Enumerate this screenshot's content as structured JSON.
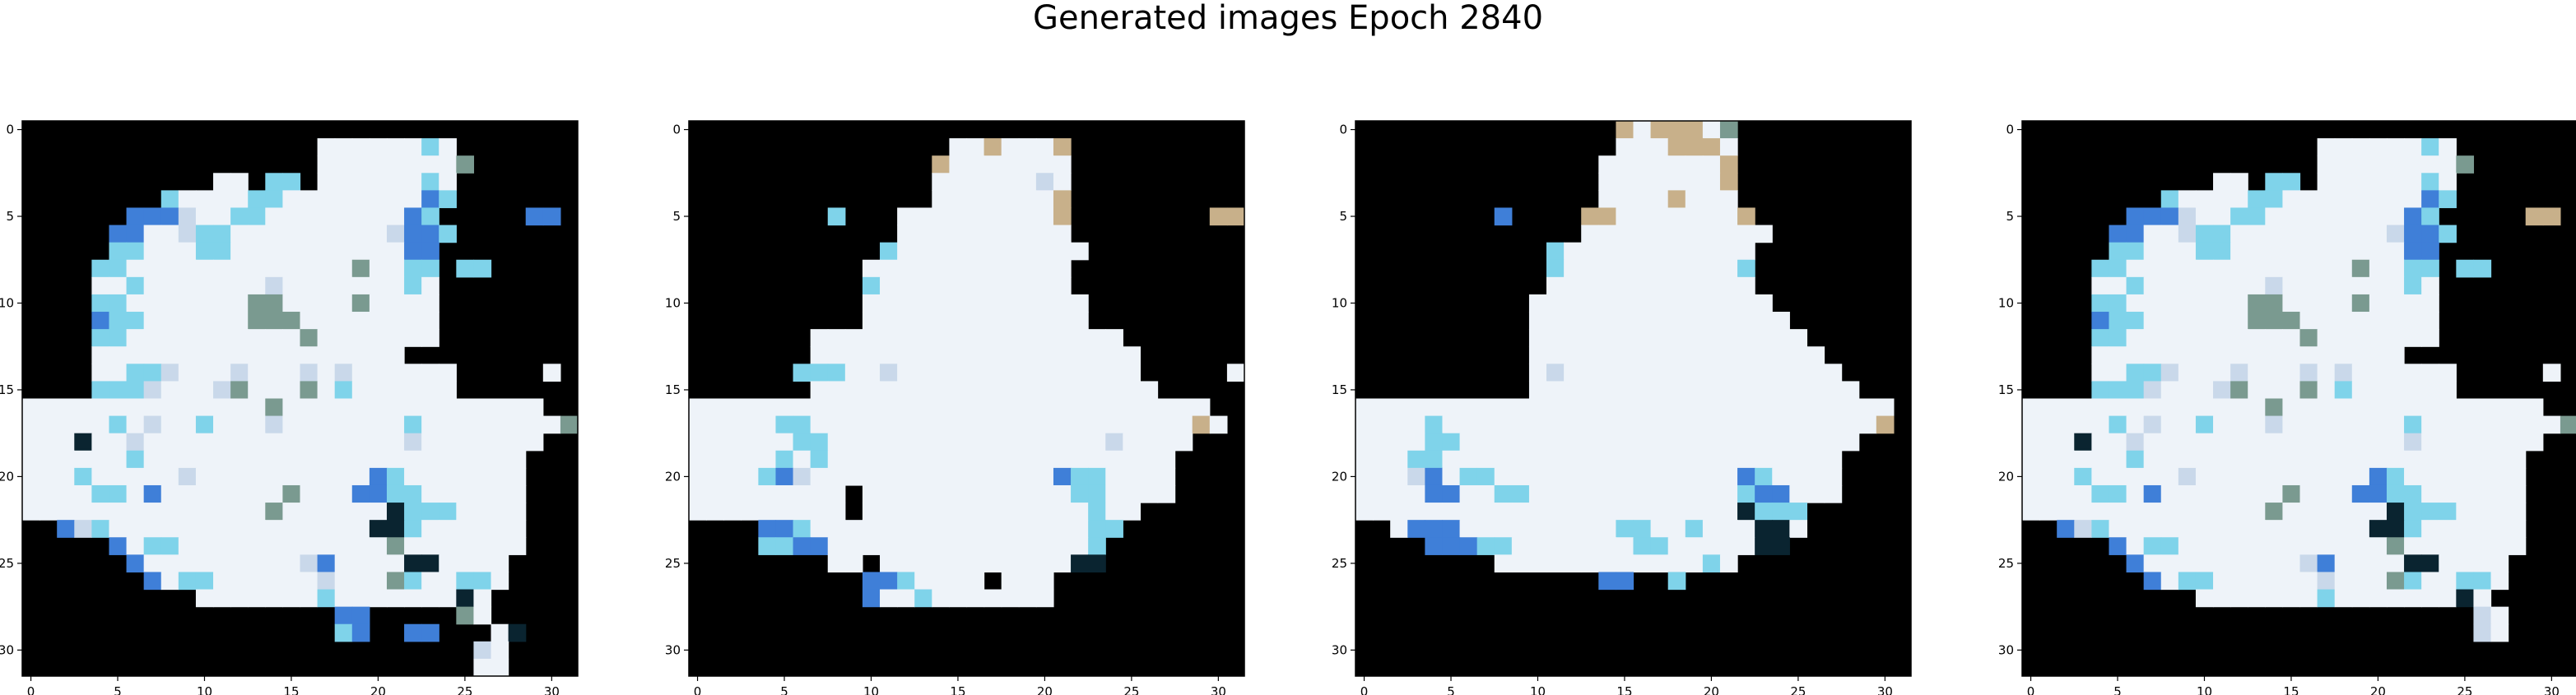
{
  "figure": {
    "title": "Generated images Epoch 2840"
  },
  "chart_data": [
    {
      "type": "heatmap",
      "image_size": 32,
      "x_ticks": [
        0,
        5,
        10,
        15,
        20,
        25,
        30
      ],
      "y_ticks": [
        0,
        5,
        10,
        15,
        20,
        25,
        30
      ],
      "xlim": [
        -0.5,
        31.5
      ],
      "ylim": [
        31.5,
        -0.5
      ],
      "grid": false,
      "background_color": "#000000",
      "rows": [
        "................................",
        ".................WWWWWWCW.......",
        ".................WWWWWWWWG......",
        "...........WW.CC.WWWWWWCW.......",
        "........CWWWWCCWWWWWWWWBC.......",
        "......BBBLWWCCWWWWWWWWBC.....BB.",
        ".....BBWWLCCWWWWWWWWWLBBC.......",
        ".....CCWWWCCWWWWWWWWWWBB........",
        "....CCWWWWWWWWWWWWWGWWCC.CC.....",
        "....WWCWWWWWWWLWWWWWWWCW........",
        "....CCWWWWWWWGGWWWWGWWWW........",
        "....BCCWWWWWWGGGWWWWWWWW........",
        "....CCWWWWWWWWWWGWWWWWWW........",
        "....WWWWWWWWWWWWWWWWWW..........",
        "....WWCCLWWWLWWWLWLWWWWWW.....W.",
        "....CCCLWWWLGWWWGWCWWWWWW.......",
        "WWWWWWWWWWWWWWGWWWWWWWWWWWWWWW..",
        "WWWWWCWLWWCWWWLWWWWWWWCWWWWWWWWG",
        "WWWDWWLWWWWWWWWWWWWWWWLWWWWWWW..",
        "WWWWWWCWWWWWWWWWWWWWWWWWWWWWW...",
        "WWWCWWWWWLWWWWWWWWWWBCWWWWWWW...",
        "WWWWCCWBWWWWWWWGWWWBBCCWWWWWW...",
        "WWWWWWWWWWWWWWGWWWWWWDCCCWWWW...",
        "..BLCWWWWWWWWWWWWWWWDDCWWWWWW...",
        ".....BWCCWWWWWWWWWWWWGWWWWWWW...",
        "......BWWWWWWWWWLBWWWWDDWWWW....",
        ".......BWCCWWWWWWLWWWGCWWCCW....",
        "..........WWWWWWWCWWWWWWWDW.....",
        "..................BB.....GW.....",
        "..................CB..BB...WD...",
        "..........................LW....",
        "..........................WW...."
      ]
    },
    {
      "type": "heatmap",
      "image_size": 32,
      "x_ticks": [
        0,
        5,
        10,
        15,
        20,
        25,
        30
      ],
      "y_ticks": [
        0,
        5,
        10,
        15,
        20,
        25,
        30
      ],
      "xlim": [
        -0.5,
        31.5
      ],
      "ylim": [
        31.5,
        -0.5
      ],
      "grid": false,
      "background_color": "#000000",
      "rows": [
        "................................",
        "...............WWTWWWT..........",
        "..............TWWWWWWW..........",
        "..............WWWWWWLW..........",
        "..............WWWWWWWT..........",
        "........C...WWWWWWWWWT........TT",
        "............WWWWWWWWWW..........",
        "...........CWWWWWWWWWWW.........",
        "..........WWWWWWWWWWWW..........",
        "..........CWWWWWWWWWWW..........",
        "..........WWWWWWWWWWWWW.........",
        "..........WWWWWWWWWWWWW.........",
        ".......WWWWWWWWWWWWWWWWWW.......",
        ".......WWWWWWWWWWWWWWWWWWW......",
        "......CCCWWLWWWWWWWWWWWWWW.....W",
        ".......WWWWWWWWWWWWWWWWWWWW.....",
        "WWWWWWWWWWWWWWWWWWWWWWWWWWWWWW..",
        "WWWWWCCWWWWWWWWWWWWWWWWWWWWWWTW.",
        "WWWWWWCCWWWWWWWWWWWWWWWWLWWWW...",
        "WWWWWCWCWWWWWWWWWWWWWWWWWWWW....",
        "WWWWCBLWWWWWWWWWWWWWWBCCWWWW....",
        "WWWWWWWWW.WWWWWWWWWWWWCCWWWW....",
        "WWWWWWWWW.WWWWWWWWWWWWWCWW......",
        "....BBCWWWWWWWWWWWWWWWWCC.......",
        "....CCBBWWWWWWWWWWWWWWWC........",
        "........WW.WWWWWWWWWWWDD........",
        "..........BBCWWWW.WWW...........",
        "..........BWWCWWWWWWW...........",
        "................................",
        "................................",
        "................................",
        "................................"
      ]
    },
    {
      "type": "heatmap",
      "image_size": 32,
      "x_ticks": [
        0,
        5,
        10,
        15,
        20,
        25,
        30
      ],
      "y_ticks": [
        0,
        5,
        10,
        15,
        20,
        25,
        30
      ],
      "xlim": [
        -0.5,
        31.5
      ],
      "ylim": [
        31.5,
        -0.5
      ],
      "grid": false,
      "background_color": "#000000",
      "rows": [
        "...............TWTTTWG..........",
        "...............WWWTTTW..........",
        "..............WWWWWWWT..........",
        "..............WWWWWWWT..........",
        "..............WWWWTWWW..........",
        "........B....TTWWWWWWWT.........",
        ".............WWWWWWWWWWW........",
        "...........CWWWWWWWWWWW.........",
        "...........CWWWWWWWWWWC.........",
        "...........WWWWWWWWWWWW.........",
        "..........WWWWWWWWWWWWWW........",
        "..........WWWWWWWWWWWWWWW.......",
        "..........WWWWWWWWWWWWWWWW......",
        "..........WWWWWWWWWWWWWWWWW.....",
        "..........WLWWWWWWWWWWWWWWWW....",
        "..........WWWWWWWWWWWWWWWWWWW...",
        "WWWWWWWWWWWWWWWWWWWWWWWWWWWWWWW.",
        "WWWWCWWWWWWWWWWWWWWWWWWWWWWWWWT.",
        "WWWWCCWWWWWWWWWWWWWWWWWWWWWWW...",
        "WWWCCWWWWWWWWWWWWWWWWWWWWWWW....",
        "WWWLBWCCWWWWWWWWWWWWWWBCWWWW....",
        "WWWWBBWWCCWWWWWWWWWWWWCBBWWW....",
        "WWWWWWWWWWWWWWWWWWWWWWDCCC......",
        "..WBBBWWWWWWWWWCCWWCWWWDDW......",
        "....BBBCCWWWWWWWCCWWWWWDD.......",
        "........WWWWWWWWWWWWCW..........",
        "..............BB..C.............",
        "................................",
        "................................",
        "................................",
        "................................",
        "................................"
      ]
    },
    {
      "type": "heatmap",
      "image_size": 32,
      "x_ticks": [
        0,
        5,
        10,
        15,
        20,
        25,
        30
      ],
      "y_ticks": [
        0,
        5,
        10,
        15,
        20,
        25,
        30
      ],
      "xlim": [
        -0.5,
        31.5
      ],
      "ylim": [
        31.5,
        -0.5
      ],
      "grid": false,
      "background_color": "#000000",
      "rows": [
        "................................",
        ".................WWWWWWCW.......",
        ".................WWWWWWWWG......",
        "...........WW.CC.WWWWWWCW.......",
        "........CWWWWCCWWWWWWWWBC.......",
        "......BBBLWWCCWWWWWWWWBC.....TT.",
        ".....BBWWLCCWWWWWWWWWLBBC.......",
        ".....CCWWWCCWWWWWWWWWWBB........",
        "....CCWWWWWWWWWWWWWGWWCC.CC.....",
        "....WWCWWWWWWWLWWWWWWWCW........",
        "....CCWWWWWWWGGWWWWGWWWW........",
        "....BCCWWWWWWGGGWWWWWWWW........",
        "....CCWWWWWWWWWWGWWWWWWW........",
        "....WWWWWWWWWWWWWWWWWW..........",
        "....WWCCLWWWLWWWLWLWWWWWW.....W.",
        "....CCCLWWWLGWWWGWCWWWWWW.......",
        "WWWWWWWWWWWWWWGWWWWWWWWWWWWWWW..",
        "WWWWWCWLWWCWWWLWWWWWWWCWWWWWWWWG",
        "WWWDWWLWWWWWWWWWWWWWWWLWWWWWWW..",
        "WWWWWWCWWWWWWWWWWWWWWWWWWWWWW...",
        "WWWCWWWWWLWWWWWWWWWWBCWWWWWWW...",
        "WWWWCCWBWWWWWWWGWWWBBCCWWWWWW...",
        "WWWWWWWWWWWWWWGWWWWWWDCCCWWWW...",
        "..BLCWWWWWWWWWWWWWWWDDCWWWWWW...",
        ".....BWCCWWWWWWWWWWWWGWWWWWWW...",
        "......BWWWWWWWWWLBWWWWDDWWWW....",
        ".......BWCCWWWWWWLWWWGCWWCCW....",
        "..........WWWWWWWCWWWWWWWDW.....",
        "..........................LW....",
        "..........................LW....",
        "................................",
        "................................"
      ]
    }
  ],
  "palette": {
    ".": "#000000",
    "W": "#eef3f9",
    "L": "#c9d8ea",
    "C": "#7fd3ea",
    "B": "#3f7fd8",
    "D": "#0a2430",
    "G": "#7a9a90",
    "T": "#c8b08a"
  }
}
